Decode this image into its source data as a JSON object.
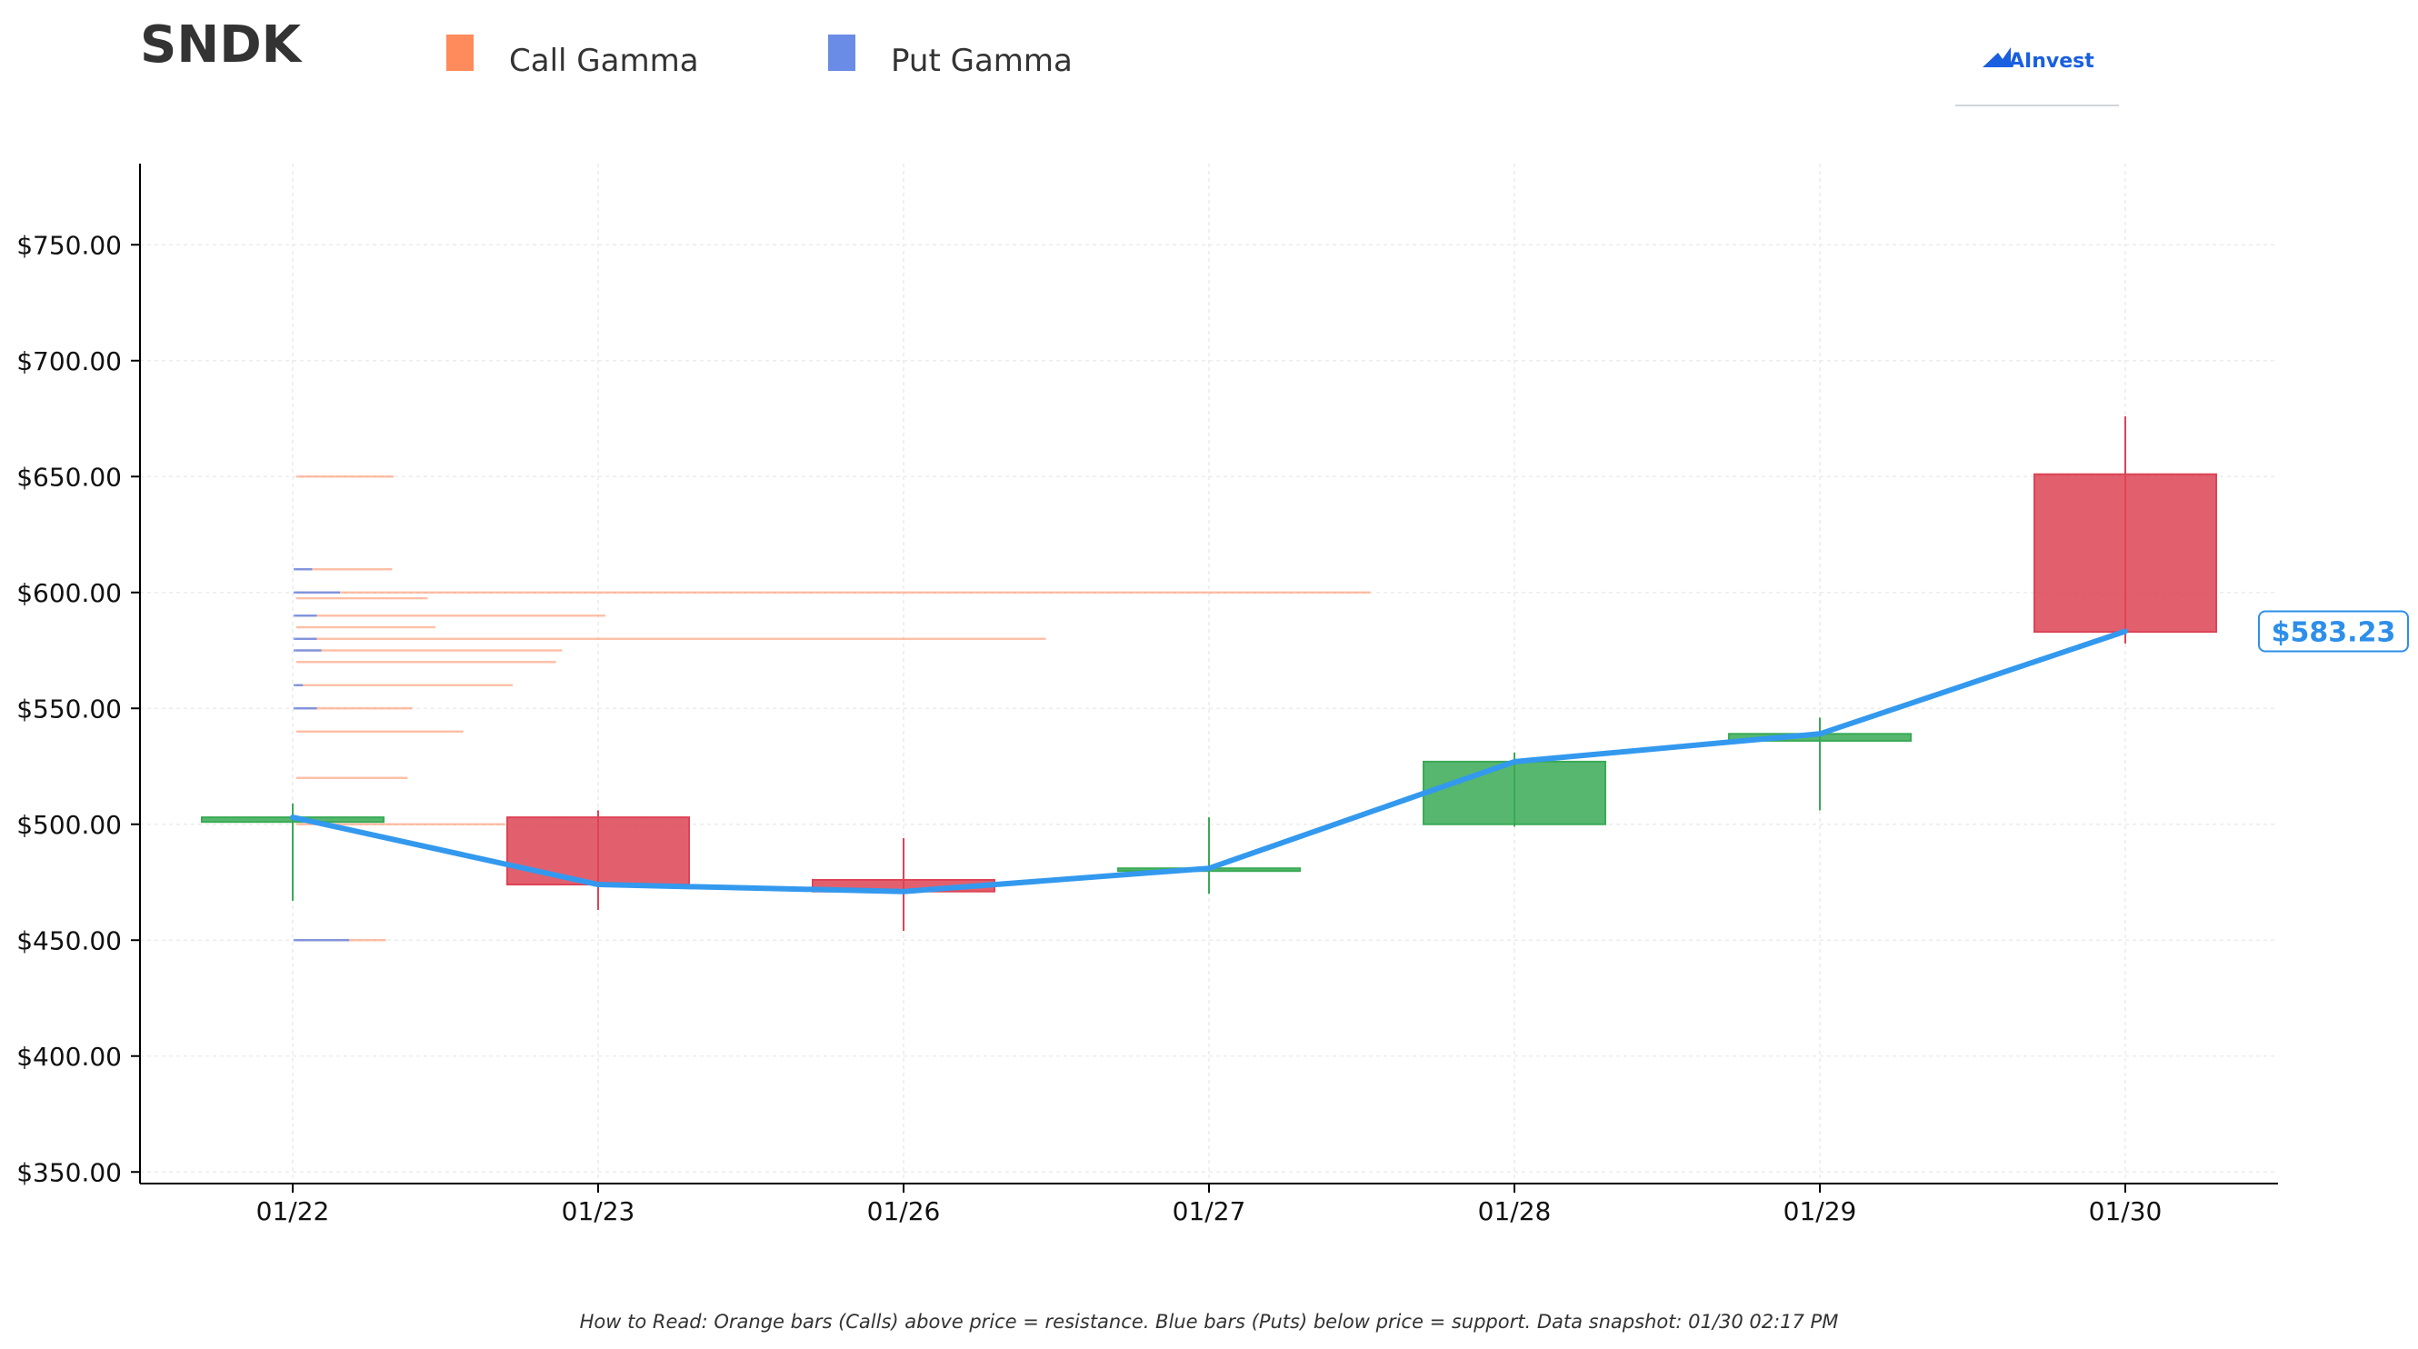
{
  "chart_data": {
    "type": "candlestick",
    "title": "SNDK",
    "legend": [
      {
        "label": "Call Gamma",
        "color": "#ff8a5c"
      },
      {
        "label": "Put Gamma",
        "color": "#6a8be6"
      }
    ],
    "legend_placement": "top",
    "brand": "AInvest",
    "categories": [
      "01/22",
      "01/23",
      "01/26",
      "01/27",
      "01/28",
      "01/29",
      "01/30"
    ],
    "ohlc": [
      {
        "date": "01/22",
        "open": 501,
        "high": 509,
        "low": 467,
        "close": 503
      },
      {
        "date": "01/23",
        "open": 503,
        "high": 506,
        "low": 463,
        "close": 474
      },
      {
        "date": "01/26",
        "open": 476,
        "high": 494,
        "low": 454,
        "close": 471
      },
      {
        "date": "01/27",
        "open": 480,
        "high": 503,
        "low": 470,
        "close": 481
      },
      {
        "date": "01/28",
        "open": 500,
        "high": 531,
        "low": 499,
        "close": 527
      },
      {
        "date": "01/29",
        "open": 536,
        "high": 546,
        "low": 506,
        "close": 539
      },
      {
        "date": "01/30",
        "open": 651,
        "high": 676,
        "low": 578,
        "close": 583
      }
    ],
    "close_line": {
      "color": "#3399ee",
      "values": [
        503,
        474,
        471,
        481,
        527,
        539,
        583.23
      ]
    },
    "last_price_label": "$583.23",
    "gamma_levels": [
      {
        "strike": 650,
        "call": 0.63,
        "put": 0.0
      },
      {
        "strike": 610,
        "call": 0.62,
        "put": 0.12
      },
      {
        "strike": 600,
        "call": 6.95,
        "put": 0.3
      },
      {
        "strike": 597.5,
        "call": 0.85,
        "put": 0.0
      },
      {
        "strike": 590,
        "call": 2.0,
        "put": 0.15
      },
      {
        "strike": 585,
        "call": 0.9,
        "put": 0.0
      },
      {
        "strike": 580,
        "call": 4.85,
        "put": 0.15
      },
      {
        "strike": 575,
        "call": 1.72,
        "put": 0.18
      },
      {
        "strike": 570,
        "call": 1.68,
        "put": 0.0
      },
      {
        "strike": 560,
        "call": 1.4,
        "put": 0.06
      },
      {
        "strike": 550,
        "call": 0.75,
        "put": 0.15
      },
      {
        "strike": 540,
        "call": 1.08,
        "put": 0.0
      },
      {
        "strike": 520,
        "call": 0.72,
        "put": 0.0
      },
      {
        "strike": 500,
        "call": 1.35,
        "put": 0.0
      },
      {
        "strike": 450,
        "call": 0.58,
        "put": 0.36
      }
    ],
    "ylim": [
      345,
      785
    ],
    "yticks": [
      350,
      400,
      450,
      500,
      550,
      600,
      650,
      700,
      750
    ],
    "ytick_labels": [
      "$350.00",
      "$400.00",
      "$450.00",
      "$500.00",
      "$550.00",
      "$600.00",
      "$650.00",
      "$700.00",
      "$750.00"
    ],
    "grid": true,
    "colors": {
      "up": "#3aaa55",
      "down": "#dd4455",
      "call": "#ff8a5c",
      "put": "#6a8be6"
    },
    "footnote": "How to Read: Orange bars (Calls) above price = resistance. Blue bars (Puts) below price = support. Data snapshot: 01/30 02:17 PM"
  }
}
